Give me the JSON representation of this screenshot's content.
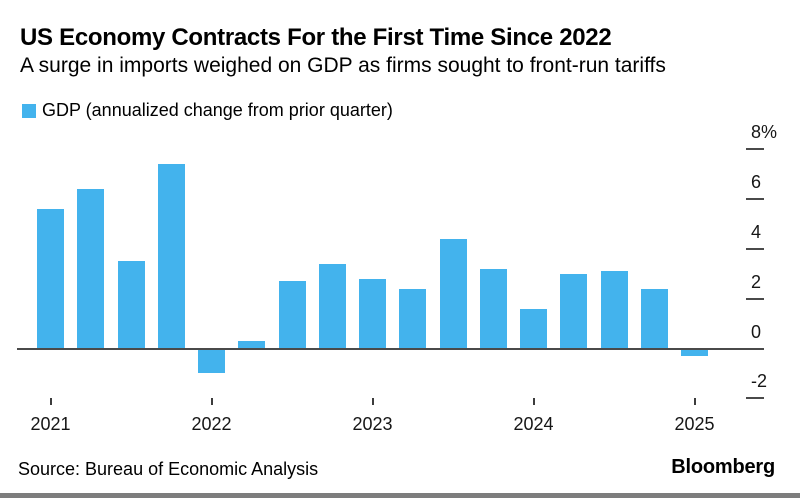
{
  "header": {
    "title": "US Economy Contracts For the First Time Since 2022",
    "subtitle": "A surge in imports weighed on GDP as firms sought to front-run tariffs"
  },
  "legend": {
    "label": "GDP (annualized change from prior quarter)"
  },
  "chart_data": {
    "type": "bar",
    "title": "US Economy Contracts For the First Time Since 2022",
    "subtitle": "A surge in imports weighed on GDP as firms sought to front-run tariffs",
    "series_name": "GDP (annualized change from prior quarter)",
    "unit": "%",
    "categories": [
      "2021 Q1",
      "2021 Q2",
      "2021 Q3",
      "2021 Q4",
      "2022 Q1",
      "2022 Q2",
      "2022 Q3",
      "2022 Q4",
      "2023 Q1",
      "2023 Q2",
      "2023 Q3",
      "2023 Q4",
      "2024 Q1",
      "2024 Q2",
      "2024 Q3",
      "2024 Q4",
      "2025 Q1"
    ],
    "values": [
      5.6,
      6.4,
      3.5,
      7.4,
      -1.0,
      0.3,
      2.7,
      3.4,
      2.8,
      2.4,
      4.4,
      3.2,
      1.6,
      3.0,
      3.1,
      2.4,
      -0.3
    ],
    "bar_color": "#43B3ED",
    "axis_color": "#4a4a4a",
    "tick_color": "#3c3c3c",
    "grid": false,
    "legend_position": "top-left",
    "value_axis_side": "right",
    "ylim": [
      -2.8,
      8.6
    ],
    "yticks": [
      8,
      6,
      4,
      2,
      0,
      -2
    ],
    "ytick_labels": [
      "8%",
      "6",
      "4",
      "2",
      "0",
      "-2"
    ],
    "xtick_labels": [
      "2021",
      "2022",
      "2023",
      "2024",
      "2025"
    ],
    "xtick_quarter_index": [
      0,
      4,
      8,
      12,
      16
    ]
  },
  "footer": {
    "source": "Source: Bureau of Economic Analysis",
    "brand": "Bloomberg"
  }
}
